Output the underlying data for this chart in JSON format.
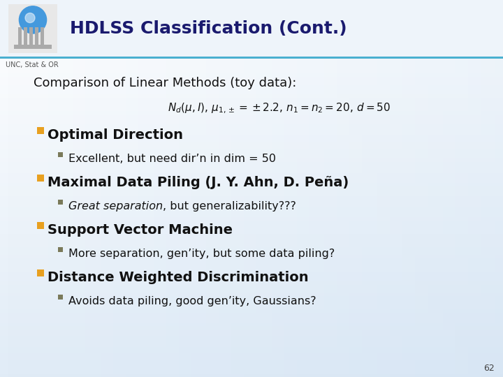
{
  "title": "HDLSS Classification (Cont.)",
  "title_color": "#1a1a6e",
  "subtitle_label": "UNC, Stat & OR",
  "subtitle_color": "#555555",
  "slide_number": "62",
  "comparison_text": "Comparison of Linear Methods (toy data):",
  "formula": "$N_d(\\mu, I),\\, \\mu_{1,\\pm} = \\pm 2.2,\\, n_1 = n_2 = 20,\\, d = 50$",
  "bullet_color_l1": "#e8a020",
  "bullet_color_l2": "#7a7a5a",
  "items": [
    {
      "level": 1,
      "text": "Optimal Direction",
      "bold": true
    },
    {
      "level": 2,
      "text": "Excellent, but need dir’n in dim = 50",
      "bold": false,
      "italic": false
    },
    {
      "level": 1,
      "text": "Maximal Data Piling (J. Y. Ahn, D. Peña)",
      "bold": true
    },
    {
      "level": 2,
      "text_parts": [
        {
          "text": "Great separation",
          "italic": true
        },
        {
          "text": ", but generalizability???",
          "italic": false
        }
      ]
    },
    {
      "level": 1,
      "text": "Support Vector Machine",
      "bold": true
    },
    {
      "level": 2,
      "text": "More separation, gen’ity, but some data piling?",
      "bold": false,
      "italic": false
    },
    {
      "level": 1,
      "text": "Distance Weighted Discrimination",
      "bold": true
    },
    {
      "level": 2,
      "text": "Avoids data piling, good gen’ity, Gaussians?",
      "bold": false,
      "italic": false
    }
  ]
}
